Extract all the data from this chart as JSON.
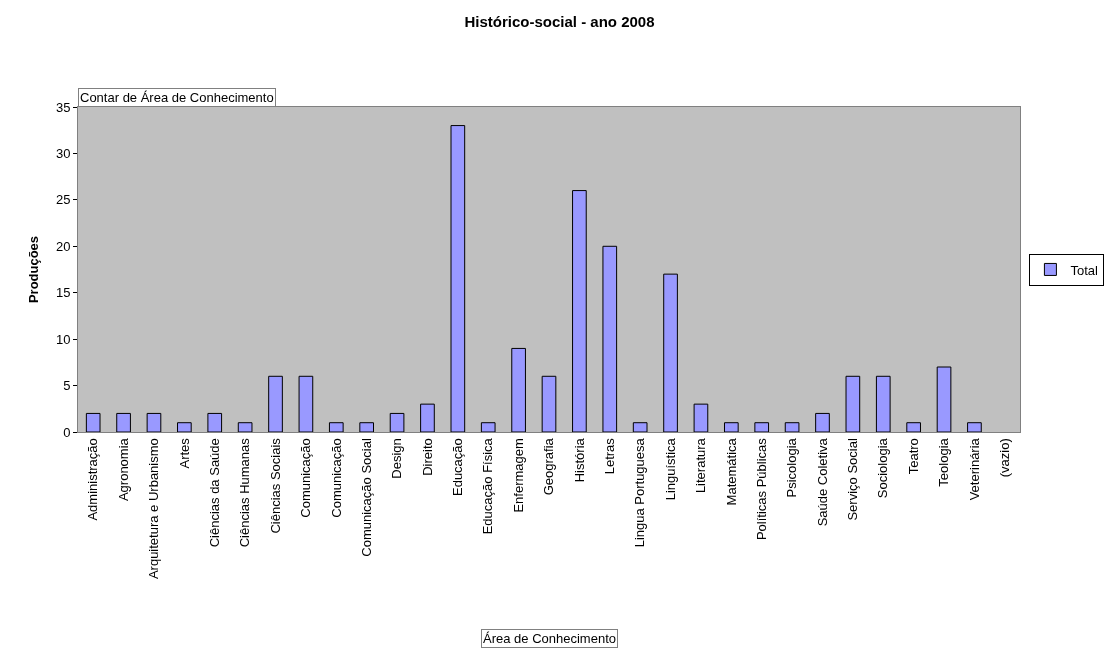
{
  "chart_data": {
    "type": "bar",
    "title": "Histórico-social - ano 2008",
    "xlabel": "Área de Conhecimento",
    "ylabel": "Produções",
    "annotations": [
      "Contar de Área de Conhecimento"
    ],
    "categories": [
      "Administração",
      "Agronomia",
      "Arquitetura e Urbanismo",
      "Artes",
      "Ciências da Saúde",
      "Ciências Humanas",
      "Ciências Sociais",
      "Comunicação",
      "Comunicação",
      "Comunicação Social",
      "Design",
      "Direito",
      "Educação",
      "Educação Física",
      "Enfermagem",
      "Geografia",
      "História",
      "Letras",
      "Lingua Portuguesa",
      "Linguística",
      "Literatura",
      "Matemática",
      "Políticas Públicas",
      "Psicologia",
      "Saúde Coletiva",
      "Serviço Social",
      "Sociologia",
      "Teatro",
      "Teologia",
      "Veterinária",
      "(vazio)"
    ],
    "series": [
      {
        "name": "Total",
        "color": "#9999ff",
        "values": [
          2,
          2,
          2,
          1,
          2,
          1,
          6,
          6,
          1,
          1,
          2,
          3,
          33,
          1,
          9,
          6,
          26,
          20,
          1,
          17,
          3,
          1,
          1,
          1,
          2,
          6,
          6,
          1,
          7,
          1,
          null
        ]
      }
    ],
    "ylim": [
      0,
      35
    ],
    "yticks": [
      0,
      5,
      10,
      15,
      20,
      25,
      30,
      35
    ],
    "grid": false,
    "legend": "right"
  }
}
